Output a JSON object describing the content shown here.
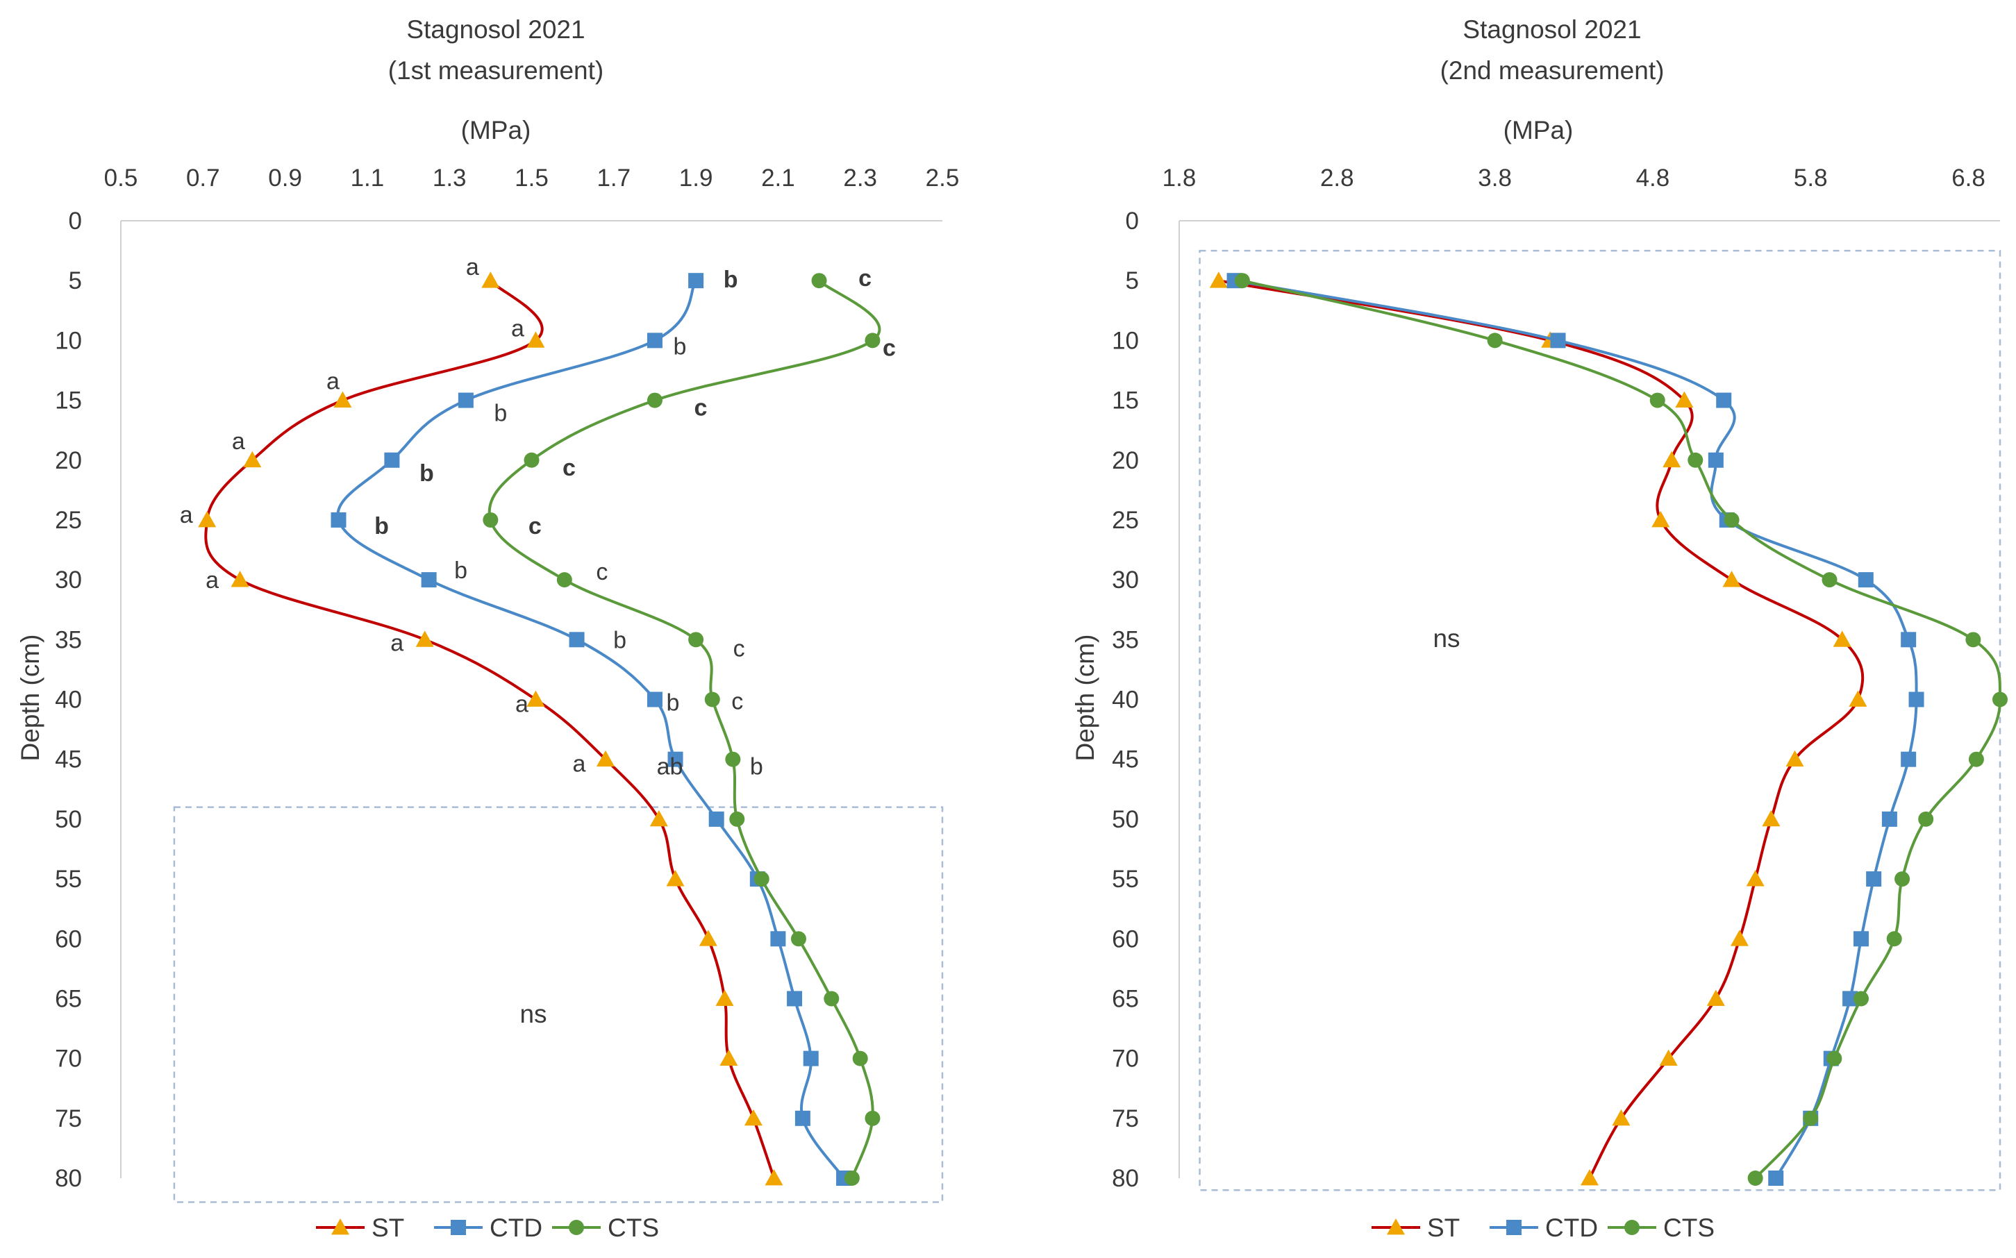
{
  "chart_data": [
    {
      "type": "line",
      "title": "Stagnosol 2021",
      "subtitle": "(1st measurement)",
      "xlabel": "(MPa)",
      "ylabel": "Depth (cm)",
      "xlim": [
        0.5,
        2.5
      ],
      "xticks": [
        "0.5",
        "0.7",
        "0.9",
        "1.1",
        "1.3",
        "1.5",
        "1.7",
        "1.9",
        "2.1",
        "2.3",
        "2.5"
      ],
      "ylim": [
        0,
        80
      ],
      "yticks": [
        "0",
        "5",
        "10",
        "15",
        "20",
        "25",
        "30",
        "35",
        "40",
        "45",
        "50",
        "55",
        "60",
        "65",
        "70",
        "75",
        "80"
      ],
      "ns_label": "ns",
      "ns_box": {
        "depth_range": [
          49,
          82
        ],
        "x_range": [
          0.63,
          2.5
        ]
      },
      "series": [
        {
          "name": "ST",
          "color": "#c00000",
          "marker_color": "#f0a500",
          "marker": "triangle",
          "depth": [
            5,
            10,
            15,
            20,
            25,
            30,
            35,
            40,
            45,
            50,
            55,
            60,
            65,
            70,
            75,
            80
          ],
          "values": [
            1.4,
            1.51,
            1.04,
            0.82,
            0.71,
            0.79,
            1.24,
            1.51,
            1.68,
            1.81,
            1.85,
            1.93,
            1.97,
            1.98,
            2.04,
            2.09
          ],
          "letters": [
            {
              "depth": 5,
              "text": "a",
              "bold": false
            },
            {
              "depth": 10,
              "text": "a",
              "bold": false
            },
            {
              "depth": 15,
              "text": "a",
              "bold": false
            },
            {
              "depth": 20,
              "text": "a",
              "bold": false
            },
            {
              "depth": 25,
              "text": "a",
              "bold": false
            },
            {
              "depth": 30,
              "text": "a",
              "bold": false
            },
            {
              "depth": 35,
              "text": "a",
              "bold": false
            },
            {
              "depth": 40,
              "text": "a",
              "bold": false
            },
            {
              "depth": 45,
              "text": "a",
              "bold": false
            }
          ]
        },
        {
          "name": "CTD",
          "color": "#4a89c8",
          "marker_color": "#4a89c8",
          "marker": "square",
          "depth": [
            5,
            10,
            15,
            20,
            25,
            30,
            35,
            40,
            45,
            50,
            55,
            60,
            65,
            70,
            75,
            80
          ],
          "values": [
            1.9,
            1.8,
            1.34,
            1.16,
            1.03,
            1.25,
            1.61,
            1.8,
            1.85,
            1.95,
            2.05,
            2.1,
            2.14,
            2.18,
            2.16,
            2.26
          ],
          "letters": [
            {
              "depth": 5,
              "text": "b",
              "bold": true
            },
            {
              "depth": 10,
              "text": "b",
              "bold": false
            },
            {
              "depth": 15,
              "text": "b",
              "bold": false
            },
            {
              "depth": 20,
              "text": "b",
              "bold": true
            },
            {
              "depth": 25,
              "text": "b",
              "bold": true
            },
            {
              "depth": 30,
              "text": "b",
              "bold": false
            },
            {
              "depth": 35,
              "text": "b",
              "bold": false
            },
            {
              "depth": 40,
              "text": "b",
              "bold": false
            },
            {
              "depth": 45,
              "text": "ab",
              "bold": false
            }
          ]
        },
        {
          "name": "CTS",
          "color": "#5a9a3a",
          "marker_color": "#5a9a3a",
          "marker": "circle",
          "depth": [
            5,
            10,
            15,
            20,
            25,
            30,
            35,
            40,
            45,
            50,
            55,
            60,
            65,
            70,
            75,
            80
          ],
          "values": [
            2.2,
            2.33,
            1.8,
            1.5,
            1.4,
            1.58,
            1.9,
            1.94,
            1.99,
            2.0,
            2.06,
            2.15,
            2.23,
            2.3,
            2.33,
            2.28
          ],
          "letters": [
            {
              "depth": 5,
              "text": "c",
              "bold": true
            },
            {
              "depth": 10,
              "text": "c",
              "bold": true
            },
            {
              "depth": 15,
              "text": "c",
              "bold": true
            },
            {
              "depth": 20,
              "text": "c",
              "bold": true
            },
            {
              "depth": 25,
              "text": "c",
              "bold": true
            },
            {
              "depth": 30,
              "text": "c",
              "bold": false
            },
            {
              "depth": 35,
              "text": "c",
              "bold": false
            },
            {
              "depth": 40,
              "text": "c",
              "bold": false
            },
            {
              "depth": 45,
              "text": "b",
              "bold": false
            }
          ]
        }
      ],
      "legend": [
        "ST",
        "CTD",
        "CTS"
      ]
    },
    {
      "type": "line",
      "title": "Stagnosol 2021",
      "subtitle": "(2nd measurement)",
      "xlabel": "(MPa)",
      "ylabel": "Depth (cm)",
      "xlim": [
        1.8,
        7.0
      ],
      "xticks": [
        "1.8",
        "2.8",
        "3.8",
        "4.8",
        "5.8",
        "6.8"
      ],
      "xtick_values": [
        1.8,
        2.8,
        3.8,
        4.8,
        5.8,
        6.8
      ],
      "ylim": [
        0,
        80
      ],
      "yticks": [
        "0",
        "5",
        "10",
        "15",
        "20",
        "25",
        "30",
        "35",
        "40",
        "45",
        "50",
        "55",
        "60",
        "65",
        "70",
        "75",
        "80"
      ],
      "ns_label": "ns",
      "ns_box": {
        "depth_range": [
          2.5,
          81
        ],
        "x_range": [
          1.93,
          7.0
        ]
      },
      "series": [
        {
          "name": "ST",
          "color": "#c00000",
          "marker_color": "#f0a500",
          "marker": "triangle",
          "depth": [
            5,
            10,
            15,
            20,
            25,
            30,
            35,
            40,
            45,
            50,
            55,
            60,
            65,
            70,
            75,
            80
          ],
          "values": [
            2.05,
            4.15,
            5.0,
            4.92,
            4.85,
            5.3,
            6.0,
            6.1,
            5.7,
            5.55,
            5.45,
            5.35,
            5.2,
            4.9,
            4.6,
            4.4
          ],
          "letters": []
        },
        {
          "name": "CTD",
          "color": "#4a89c8",
          "marker_color": "#4a89c8",
          "marker": "square",
          "depth": [
            5,
            10,
            15,
            20,
            25,
            30,
            35,
            40,
            45,
            50,
            55,
            60,
            65,
            70,
            75,
            80
          ],
          "values": [
            2.15,
            4.2,
            5.25,
            5.2,
            5.27,
            6.15,
            6.42,
            6.47,
            6.42,
            6.3,
            6.2,
            6.12,
            6.05,
            5.93,
            5.8,
            5.58
          ],
          "letters": []
        },
        {
          "name": "CTS",
          "color": "#5a9a3a",
          "marker_color": "#5a9a3a",
          "marker": "circle",
          "depth": [
            5,
            10,
            15,
            20,
            25,
            30,
            35,
            40,
            45,
            50,
            55,
            60,
            65,
            70,
            75,
            80
          ],
          "values": [
            2.2,
            3.8,
            4.83,
            5.07,
            5.3,
            5.92,
            6.83,
            7.0,
            6.85,
            6.53,
            6.38,
            6.33,
            6.12,
            5.95,
            5.8,
            5.45
          ],
          "letters": []
        }
      ],
      "legend": [
        "ST",
        "CTD",
        "CTS"
      ]
    }
  ]
}
